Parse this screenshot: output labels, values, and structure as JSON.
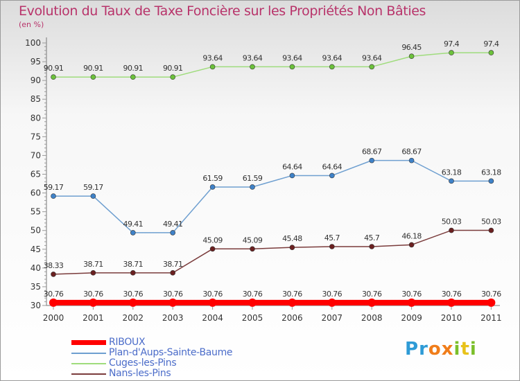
{
  "title": "Evolution du Taux de Taxe Foncière sur les Propriétés Non Bâties",
  "subtitle": "(en %)",
  "logo": {
    "text": "Proxiti",
    "letters": [
      "P",
      "r",
      "o",
      "x",
      "i",
      "t",
      "i"
    ],
    "colors": [
      "#2e9bd6",
      "#2e9bd6",
      "#f07d1a",
      "#f07d1a",
      "#7bbf2a",
      "#e8c21a",
      "#7bbf2a"
    ]
  },
  "chart_data": {
    "type": "line",
    "title": "Evolution du Taux de Taxe Foncière sur les Propriétés Non Bâties",
    "ylabel": "(en %)",
    "x": [
      "2000",
      "2001",
      "2002",
      "2003",
      "2004",
      "2005",
      "2006",
      "2007",
      "2008",
      "2009",
      "2010",
      "2011"
    ],
    "ylim": [
      30,
      100
    ],
    "yticks": [
      30,
      35,
      40,
      45,
      50,
      55,
      60,
      65,
      70,
      75,
      80,
      85,
      90,
      95,
      100
    ],
    "grid": false,
    "legend_position": "bottom-left",
    "series": [
      {
        "name": "RIBOUX",
        "color": "#ff0000",
        "lineWidth": 8,
        "markerColor": "#ff0000",
        "values": [
          30.76,
          30.76,
          30.76,
          30.76,
          30.76,
          30.76,
          30.76,
          30.76,
          30.76,
          30.76,
          30.76,
          30.76
        ],
        "labels": [
          "30.76",
          "30.76",
          "30.76",
          "30.76",
          "30.76",
          "30.76",
          "30.76",
          "30.76",
          "30.76",
          "30.76",
          "30.76",
          "30.76"
        ]
      },
      {
        "name": "Plan-d'Aups-Sainte-Baume",
        "color": "#6e9fd0",
        "lineWidth": 1.5,
        "markerColor": "#3f82c8",
        "values": [
          59.17,
          59.17,
          49.41,
          49.41,
          61.59,
          61.59,
          64.64,
          64.64,
          68.67,
          68.67,
          63.18,
          63.18
        ],
        "labels": [
          "59.17",
          "59.17",
          "49.41",
          "49.41",
          "61.59",
          "61.59",
          "64.64",
          "64.64",
          "68.67",
          "68.67",
          "63.18",
          "63.18"
        ]
      },
      {
        "name": "Cuges-les-Pins",
        "color": "#9fdc7c",
        "lineWidth": 1.5,
        "markerColor": "#6cc13b",
        "values": [
          90.91,
          90.91,
          90.91,
          90.91,
          93.64,
          93.64,
          93.64,
          93.64,
          93.64,
          96.45,
          97.4,
          97.4
        ],
        "labels": [
          "90.91",
          "90.91",
          "90.91",
          "90.91",
          "93.64",
          "93.64",
          "93.64",
          "93.64",
          "93.64",
          "96.45",
          "97.4",
          "97.4"
        ]
      },
      {
        "name": "Nans-les-Pins",
        "color": "#7a3b3b",
        "lineWidth": 1.5,
        "markerColor": "#6b2020",
        "values": [
          38.33,
          38.71,
          38.71,
          38.71,
          45.09,
          45.09,
          45.48,
          45.7,
          45.7,
          46.18,
          50.03,
          50.03
        ],
        "labels": [
          "38.33",
          "38.71",
          "38.71",
          "38.71",
          "45.09",
          "45.09",
          "45.48",
          "45.7",
          "45.7",
          "46.18",
          "50.03",
          "50.03"
        ]
      }
    ]
  }
}
